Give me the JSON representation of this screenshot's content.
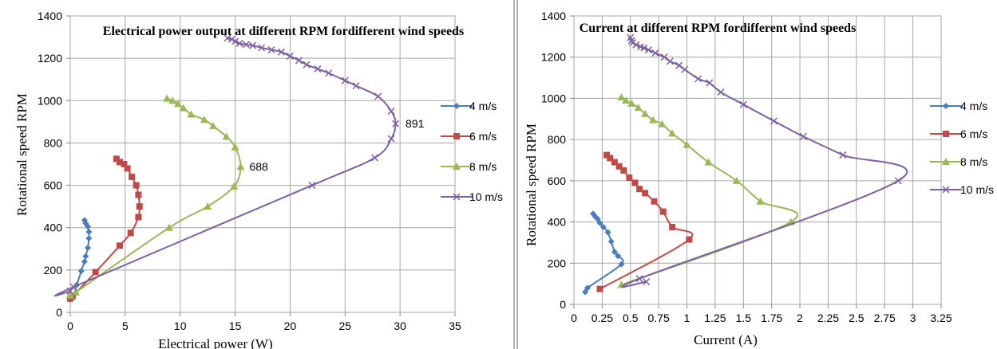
{
  "colors": {
    "4 m/s": "#4a7ebb",
    "6 m/s": "#be4b48",
    "8 m/s": "#98b954",
    "10 m/s": "#7d60a0",
    "grid": "#a6a6a6"
  },
  "chart_data": [
    {
      "type": "scatter",
      "title": "Electrical power output at different RPM fordifferent wind speeds",
      "xlabel": "Electrical power (W)",
      "ylabel": "Rotational speed RPM",
      "xlim": [
        0,
        35
      ],
      "ylim": [
        0,
        1400
      ],
      "xticks": [
        "0",
        "5",
        "10",
        "15",
        "20",
        "25",
        "30",
        "35"
      ],
      "yticks": [
        "0",
        "200",
        "400",
        "600",
        "800",
        "1000",
        "1200",
        "1400"
      ],
      "grid": true,
      "legend_position": "right",
      "annotations": [
        {
          "text": "688",
          "x": 16.3,
          "y": 688
        },
        {
          "text": "891",
          "x": 30.5,
          "y": 891
        }
      ],
      "series": [
        {
          "name": "4 m/s",
          "marker": "diamond",
          "points": [
            [
              0,
              60
            ],
            [
              0.3,
              80
            ],
            [
              0.6,
              130
            ],
            [
              1.0,
              195
            ],
            [
              1.3,
              240
            ],
            [
              1.4,
              265
            ],
            [
              1.6,
              305
            ],
            [
              1.7,
              350
            ],
            [
              1.7,
              380
            ],
            [
              1.6,
              405
            ],
            [
              1.4,
              420
            ],
            [
              1.3,
              435
            ]
          ]
        },
        {
          "name": "6 m/s",
          "marker": "square",
          "points": [
            [
              0,
              65
            ],
            [
              0.2,
              75
            ],
            [
              2.3,
              190
            ],
            [
              4.5,
              315
            ],
            [
              5.5,
              375
            ],
            [
              6.2,
              450
            ],
            [
              6.3,
              500
            ],
            [
              6.2,
              555
            ],
            [
              6.0,
              600
            ],
            [
              5.6,
              640
            ],
            [
              5.2,
              680
            ],
            [
              4.9,
              700
            ],
            [
              4.5,
              710
            ],
            [
              4.2,
              725
            ]
          ]
        },
        {
          "name": "8 m/s",
          "marker": "triangle",
          "points": [
            [
              0,
              80
            ],
            [
              0.5,
              95
            ],
            [
              9.0,
              400
            ],
            [
              12.5,
              500
            ],
            [
              14.9,
              595
            ],
            [
              15.5,
              688
            ],
            [
              15.0,
              780
            ],
            [
              14.2,
              830
            ],
            [
              13.0,
              880
            ],
            [
              12.2,
              910
            ],
            [
              11.0,
              935
            ],
            [
              10.3,
              965
            ],
            [
              9.8,
              985
            ],
            [
              9.3,
              1000
            ],
            [
              8.8,
              1010
            ]
          ]
        },
        {
          "name": "10 m/s",
          "marker": "x",
          "points": [
            [
              0,
              100
            ],
            [
              0.3,
              120
            ],
            [
              22.0,
              600
            ],
            [
              27.7,
              730
            ],
            [
              29.2,
              820
            ],
            [
              29.6,
              891
            ],
            [
              29.2,
              950
            ],
            [
              28.0,
              1020
            ],
            [
              26.0,
              1070
            ],
            [
              25.0,
              1095
            ],
            [
              23.5,
              1130
            ],
            [
              22.5,
              1150
            ],
            [
              21.5,
              1170
            ],
            [
              20.8,
              1190
            ],
            [
              20.0,
              1210
            ],
            [
              19.2,
              1230
            ],
            [
              18.3,
              1240
            ],
            [
              17.4,
              1250
            ],
            [
              16.6,
              1260
            ],
            [
              16.0,
              1265
            ],
            [
              15.4,
              1270
            ],
            [
              15.0,
              1280
            ],
            [
              14.7,
              1290
            ],
            [
              14.3,
              1295
            ]
          ]
        }
      ]
    },
    {
      "type": "scatter",
      "title": "Current at different RPM fordifferent wind speeds",
      "xlabel": "Current (A)",
      "ylabel": "Rotational speed RPM",
      "xlim": [
        0,
        3.25
      ],
      "ylim": [
        0,
        1400
      ],
      "xticks": [
        "0",
        "0.25",
        "0.5",
        "0.75",
        "1",
        "1.25",
        "1.5",
        "1.75",
        "2",
        "2.25",
        "2.5",
        "2.75",
        "3",
        "3.25"
      ],
      "yticks": [
        "0",
        "200",
        "400",
        "600",
        "800",
        "1000",
        "1200",
        "1400"
      ],
      "grid": true,
      "legend_position": "right",
      "annotations": [],
      "series": [
        {
          "name": "4 m/s",
          "marker": "diamond",
          "points": [
            [
              0.1,
              60
            ],
            [
              0.12,
              80
            ],
            [
              0.42,
              195
            ],
            [
              0.39,
              235
            ],
            [
              0.36,
              255
            ],
            [
              0.33,
              305
            ],
            [
              0.3,
              350
            ],
            [
              0.26,
              375
            ],
            [
              0.23,
              395
            ],
            [
              0.21,
              415
            ],
            [
              0.19,
              425
            ],
            [
              0.17,
              440
            ]
          ]
        },
        {
          "name": "6 m/s",
          "marker": "square",
          "points": [
            [
              0.23,
              75
            ],
            [
              1.02,
              315
            ],
            [
              0.87,
              375
            ],
            [
              0.79,
              450
            ],
            [
              0.71,
              500
            ],
            [
              0.63,
              540
            ],
            [
              0.58,
              560
            ],
            [
              0.54,
              590
            ],
            [
              0.49,
              615
            ],
            [
              0.44,
              650
            ],
            [
              0.4,
              670
            ],
            [
              0.36,
              690
            ],
            [
              0.32,
              710
            ],
            [
              0.29,
              725
            ]
          ]
        },
        {
          "name": "8 m/s",
          "marker": "triangle",
          "points": [
            [
              0.42,
              95
            ],
            [
              1.92,
              400
            ],
            [
              1.65,
              500
            ],
            [
              1.44,
              600
            ],
            [
              1.19,
              690
            ],
            [
              1.0,
              775
            ],
            [
              0.87,
              830
            ],
            [
              0.78,
              875
            ],
            [
              0.7,
              895
            ],
            [
              0.63,
              925
            ],
            [
              0.57,
              955
            ],
            [
              0.51,
              975
            ],
            [
              0.46,
              990
            ],
            [
              0.42,
              1005
            ]
          ]
        },
        {
          "name": "10 m/s",
          "marker": "x",
          "points": [
            [
              0.64,
              110
            ],
            [
              0.58,
              125
            ],
            [
              2.87,
              600
            ],
            [
              2.38,
              725
            ],
            [
              2.03,
              815
            ],
            [
              1.77,
              890
            ],
            [
              1.5,
              970
            ],
            [
              1.3,
              1030
            ],
            [
              1.2,
              1075
            ],
            [
              1.1,
              1095
            ],
            [
              0.98,
              1140
            ],
            [
              0.93,
              1160
            ],
            [
              0.85,
              1180
            ],
            [
              0.8,
              1200
            ],
            [
              0.72,
              1220
            ],
            [
              0.66,
              1235
            ],
            [
              0.62,
              1245
            ],
            [
              0.59,
              1250
            ],
            [
              0.55,
              1260
            ],
            [
              0.52,
              1270
            ],
            [
              0.51,
              1280
            ],
            [
              0.5,
              1295
            ]
          ]
        }
      ]
    }
  ]
}
